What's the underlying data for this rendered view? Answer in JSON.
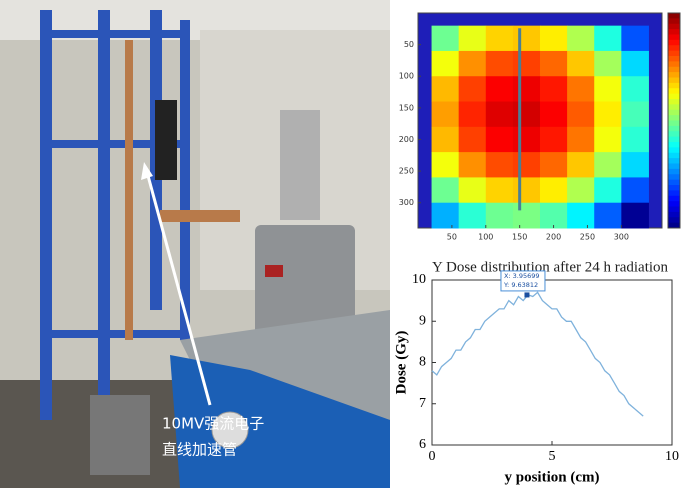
{
  "photo": {
    "caption": [
      "10MV强流电子",
      "直线加速管"
    ]
  },
  "chart_data": [
    {
      "type": "heatmap",
      "x": [
        40,
        80,
        120,
        160,
        200,
        240,
        280,
        320
      ],
      "y": [
        40,
        80,
        120,
        160,
        200,
        240,
        280,
        320
      ],
      "z": [
        [
          7.41,
          8.01,
          8.34,
          8.4,
          8.21,
          7.74,
          7.02,
          6.03
        ],
        [
          8.07,
          8.67,
          9.0,
          9.06,
          8.87,
          8.4,
          7.68,
          6.69
        ],
        [
          8.47,
          9.06,
          9.39,
          9.46,
          9.26,
          8.8,
          8.07,
          7.08
        ],
        [
          8.6,
          9.2,
          9.53,
          9.59,
          9.39,
          8.93,
          8.21,
          7.22
        ],
        [
          8.47,
          9.06,
          9.39,
          9.46,
          9.26,
          8.8,
          8.07,
          7.08
        ],
        [
          8.07,
          8.67,
          9.0,
          9.06,
          8.87,
          8.4,
          7.68,
          6.69
        ],
        [
          7.41,
          8.01,
          8.34,
          8.4,
          8.21,
          7.74,
          7.02,
          6.03
        ],
        [
          6.49,
          7.08,
          7.41,
          7.48,
          7.28,
          6.82,
          6.09,
          5.1
        ]
      ],
      "clim": [
        5,
        10
      ],
      "colormap": "jet",
      "xlim": [
        0,
        360
      ],
      "ylim": [
        0,
        340
      ],
      "yreverse": true,
      "xticks": [
        50,
        100,
        150,
        200,
        250,
        300
      ],
      "yticks": [
        50,
        100,
        150,
        200,
        250,
        300
      ],
      "line_x": 150,
      "line_color": "#4a7f95"
    },
    {
      "type": "line",
      "title": "Y Dose distribution after 24 h radiation",
      "x_label": "y position (cm)",
      "y_label": "Dose (Gy)",
      "x": [
        0,
        0.2,
        0.4,
        0.6,
        0.8,
        1.0,
        1.2,
        1.4,
        1.6,
        1.8,
        2.0,
        2.2,
        2.4,
        2.6,
        2.8,
        3.0,
        3.2,
        3.4,
        3.6,
        3.8,
        4.0,
        4.2,
        4.4,
        4.6,
        4.8,
        5.0,
        5.2,
        5.4,
        5.6,
        5.8,
        6.0,
        6.2,
        6.4,
        6.6,
        6.8,
        7.0,
        7.2,
        7.4,
        7.6,
        7.8,
        8.0,
        8.2,
        8.4,
        8.6,
        8.8
      ],
      "series": [
        {
          "color": "#7fb2dc",
          "values": [
            7.8,
            7.7,
            7.9,
            8.0,
            8.1,
            8.3,
            8.3,
            8.5,
            8.6,
            8.8,
            8.8,
            9.0,
            9.1,
            9.2,
            9.3,
            9.3,
            9.5,
            9.4,
            9.6,
            9.5,
            9.64,
            9.6,
            9.7,
            9.5,
            9.4,
            9.3,
            9.3,
            9.1,
            9.0,
            9.0,
            8.8,
            8.6,
            8.5,
            8.3,
            8.1,
            8.0,
            7.8,
            7.7,
            7.5,
            7.3,
            7.2,
            7.0,
            6.9,
            6.8,
            6.7
          ]
        }
      ],
      "datatip": {
        "x": 3.95699,
        "y": 9.63812,
        "labels": [
          "X: 3.95699",
          "Y: 9.63812"
        ]
      },
      "xlim": [
        0,
        10
      ],
      "ylim": [
        6,
        10
      ],
      "xticks": [
        0,
        5,
        10
      ],
      "yticks": [
        6,
        7,
        8,
        9,
        10
      ]
    }
  ]
}
